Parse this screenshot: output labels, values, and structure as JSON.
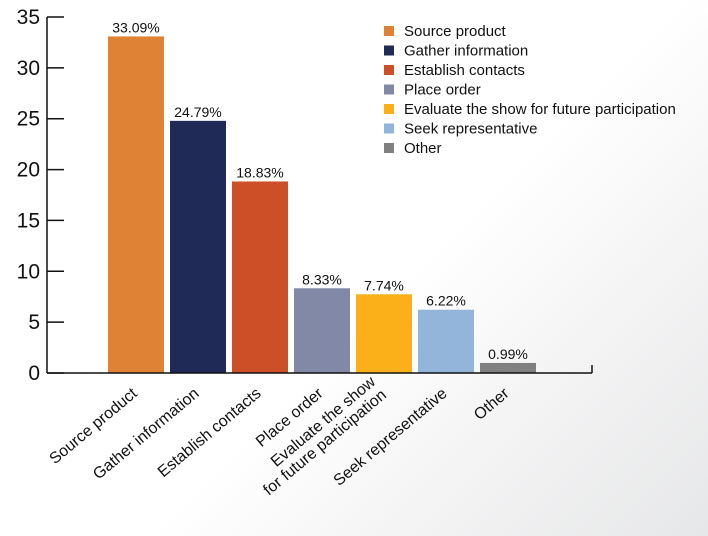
{
  "chart_data": {
    "type": "bar",
    "categories": [
      "Source product",
      "Gather information",
      "Establish contacts",
      "Place order",
      "Evaluate the show\nfor future participation",
      "Seek representative",
      "Other"
    ],
    "values": [
      33.09,
      24.79,
      18.83,
      8.33,
      7.74,
      6.22,
      0.99
    ],
    "data_labels": [
      "33.09%",
      "24.79%",
      "18.83%",
      "8.33%",
      "7.74%",
      "6.22%",
      "0.99%"
    ],
    "colors": [
      "#e08235",
      "#1f2a57",
      "#cc4f27",
      "#8189a6",
      "#fbb01a",
      "#93b5da",
      "#808080"
    ],
    "legend": [
      "Source product",
      "Gather information",
      "Establish contacts",
      "Place order",
      "Evaluate the show for future participation",
      "Seek representative",
      "Other"
    ],
    "yticks": [
      0,
      5,
      10,
      15,
      20,
      25,
      30,
      35
    ],
    "ylim": [
      0,
      35
    ],
    "legend_position": "top-right",
    "grid": false,
    "title": "",
    "xlabel": "",
    "ylabel": ""
  }
}
